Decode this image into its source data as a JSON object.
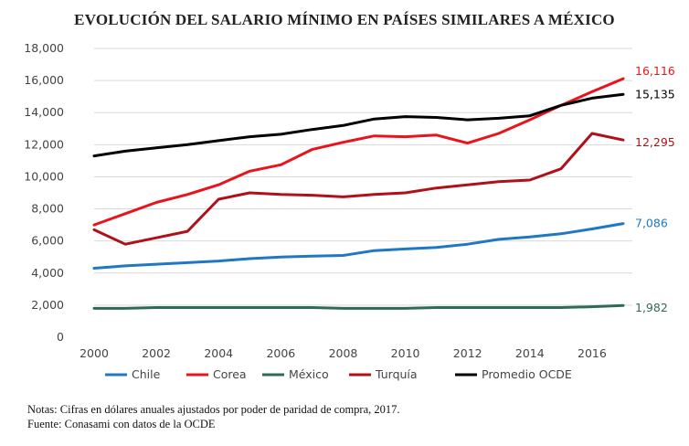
{
  "chart_data": {
    "type": "line",
    "title": "EVOLUCIÓN DEL SALARIO MÍNIMO EN PAÍSES SIMILARES A MÉXICO",
    "xlabel": "",
    "ylabel": "",
    "x": [
      2000,
      2001,
      2002,
      2003,
      2004,
      2005,
      2006,
      2007,
      2008,
      2009,
      2010,
      2011,
      2012,
      2013,
      2014,
      2015,
      2016,
      2017
    ],
    "xticks": [
      "2000",
      "2002",
      "2004",
      "2006",
      "2008",
      "2010",
      "2012",
      "2014",
      "2016"
    ],
    "ylim": [
      0,
      18000
    ],
    "yticks": [
      "0",
      "2,000",
      "4,000",
      "6,000",
      "8,000",
      "10,000",
      "12,000",
      "14,000",
      "16,000",
      "18,000"
    ],
    "grid": true,
    "legend_position": "bottom",
    "series": [
      {
        "name": "Chile",
        "color": "#1f78c1",
        "end_label": "7,086",
        "values": [
          4300,
          4450,
          4550,
          4650,
          4750,
          4900,
          5000,
          5050,
          5100,
          5400,
          5500,
          5600,
          5800,
          6100,
          6250,
          6450,
          6750,
          7086
        ]
      },
      {
        "name": "Corea",
        "color": "#e8141c",
        "end_label": "16,116",
        "values": [
          7000,
          7700,
          8400,
          8900,
          9500,
          10350,
          10750,
          11700,
          12150,
          12550,
          12500,
          12600,
          12100,
          12700,
          13550,
          14450,
          15300,
          16116
        ]
      },
      {
        "name": "México",
        "color": "#2e6b57",
        "end_label": "1,982",
        "values": [
          1800,
          1800,
          1850,
          1850,
          1850,
          1850,
          1850,
          1850,
          1800,
          1800,
          1800,
          1850,
          1850,
          1850,
          1850,
          1850,
          1900,
          1982
        ]
      },
      {
        "name": "Turquía",
        "color": "#b0101a",
        "end_label": "12,295",
        "values": [
          6700,
          5800,
          6200,
          6600,
          8600,
          9000,
          8900,
          8850,
          8750,
          8900,
          9000,
          9300,
          9500,
          9700,
          9800,
          10500,
          12700,
          12295
        ]
      },
      {
        "name": "Promedio OCDE",
        "color": "#000000",
        "end_label": "15,135",
        "values": [
          11300,
          11600,
          11800,
          12000,
          12250,
          12500,
          12650,
          12950,
          13200,
          13600,
          13750,
          13700,
          13550,
          13650,
          13800,
          14450,
          14900,
          15135
        ]
      }
    ]
  },
  "notes": {
    "line1": "Notas: Cifras en dólares anuales ajustados por poder de paridad de compra, 2017.",
    "line2": "Fuente: Conasami con datos de la OCDE"
  }
}
